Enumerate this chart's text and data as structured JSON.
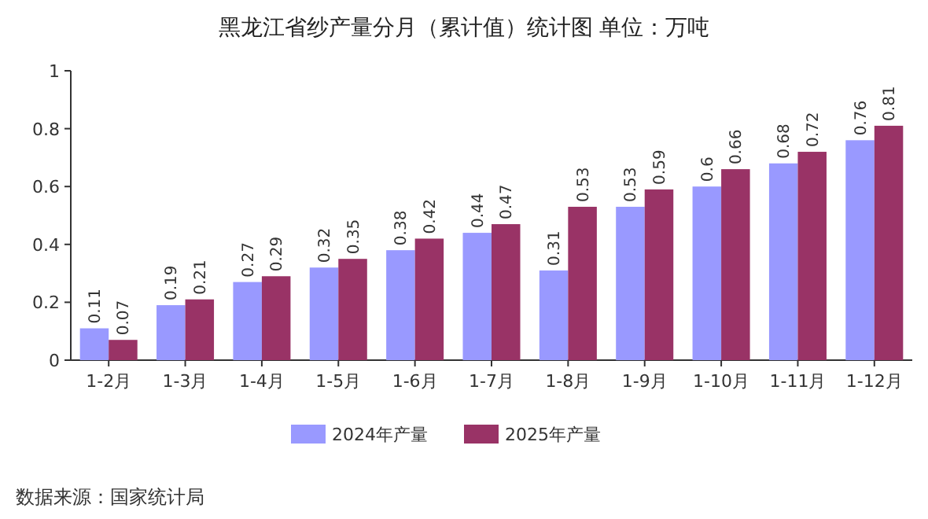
{
  "chart_data": {
    "type": "bar",
    "title": "黑龙江省纱产量分月（累计值）统计图 单位：万吨",
    "categories": [
      "1-2月",
      "1-3月",
      "1-4月",
      "1-5月",
      "1-6月",
      "1-7月",
      "1-8月",
      "1-9月",
      "1-10月",
      "1-11月",
      "1-12月"
    ],
    "series": [
      {
        "name": "2024年产量",
        "color": "#9999ff",
        "values": [
          0.11,
          0.19,
          0.27,
          0.32,
          0.38,
          0.44,
          0.31,
          0.53,
          0.6,
          0.68,
          0.76
        ]
      },
      {
        "name": "2025年产量",
        "color": "#993366",
        "values": [
          0.07,
          0.21,
          0.29,
          0.35,
          0.42,
          0.47,
          0.53,
          0.59,
          0.66,
          0.72,
          0.81
        ]
      }
    ],
    "ylim": [
      0,
      1
    ],
    "yticks": [
      0,
      0.2,
      0.4,
      0.6,
      0.8,
      1
    ],
    "data_labels": true,
    "legend": "bottom",
    "annotations": [
      "数据来源：国家统计局"
    ]
  }
}
